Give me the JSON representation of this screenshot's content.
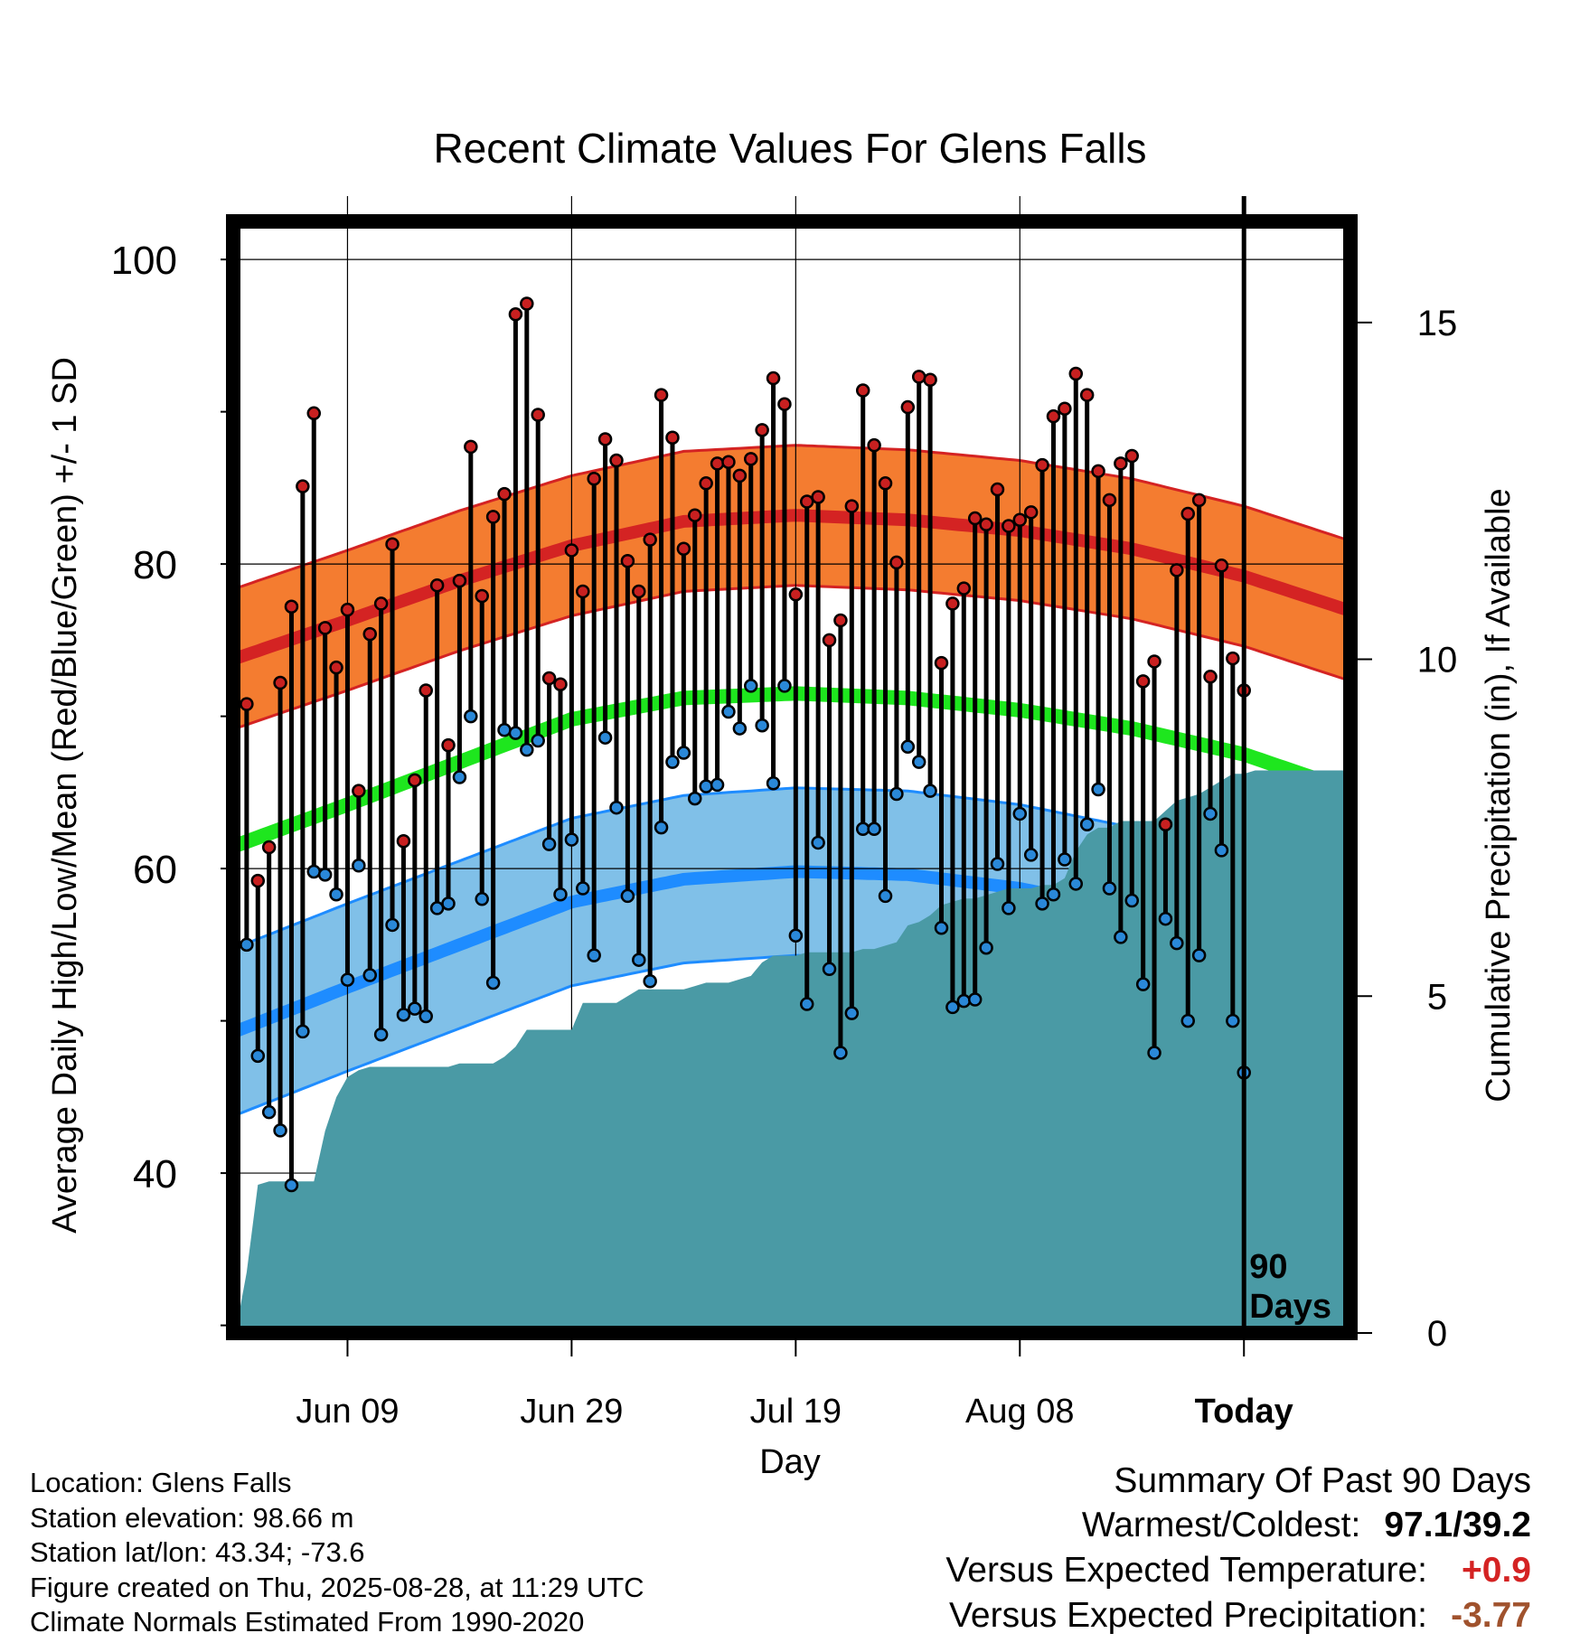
{
  "chart_data": {
    "type": "line",
    "title": "Recent Climate Values For Glens Falls",
    "xlabel": "Day",
    "ylabel": "Average Daily High/Low/Mean (Red/Blue/Green) +/- 1 SD",
    "y2label": "Cumulative Precipitation (in), If Available",
    "ylim": [
      29.5,
      102.5
    ],
    "y2lim": [
      0,
      16.5
    ],
    "y_ticks": [
      100,
      80,
      60,
      40
    ],
    "y2_ticks": [
      15,
      10,
      5,
      0
    ],
    "x_tick_labels": [
      "Jun 09",
      "Jun 29",
      "Jul 19",
      "Aug 08",
      "Today"
    ],
    "x_tick_days": [
      11,
      31,
      51,
      71,
      91
    ],
    "x_range": [
      0.8,
      100.5
    ],
    "days_marker_label": "90\nDays",
    "normal_high_day_points": [
      [
        1,
        73.8
      ],
      [
        11,
        76.3
      ],
      [
        21,
        78.9
      ],
      [
        31,
        81.2
      ],
      [
        41,
        82.8
      ],
      [
        51,
        83.2
      ],
      [
        61,
        82.9
      ],
      [
        71,
        82.2
      ],
      [
        81,
        81.0
      ],
      [
        91,
        79.2
      ],
      [
        101,
        76.8
      ]
    ],
    "normal_high_sd": 4.6,
    "normal_mean_day_points": [
      [
        1,
        61.5
      ],
      [
        11,
        64.2
      ],
      [
        21,
        67.0
      ],
      [
        31,
        69.8
      ],
      [
        41,
        71.2
      ],
      [
        51,
        71.5
      ],
      [
        61,
        71.2
      ],
      [
        71,
        70.4
      ],
      [
        81,
        69.2
      ],
      [
        91,
        67.5
      ],
      [
        101,
        65.0
      ]
    ],
    "normal_mean_halfwidth": 0.8,
    "normal_low_day_points": [
      [
        1,
        49.3
      ],
      [
        11,
        52.2
      ],
      [
        21,
        55.0
      ],
      [
        31,
        57.8
      ],
      [
        41,
        59.3
      ],
      [
        51,
        59.8
      ],
      [
        61,
        59.6
      ],
      [
        71,
        58.7
      ],
      [
        81,
        57.2
      ],
      [
        91,
        55.3
      ],
      [
        101,
        52.8
      ]
    ],
    "normal_low_sd": 5.5,
    "series": [
      {
        "name": "High",
        "values": [
          [
            2,
            70.8
          ],
          [
            3,
            59.2
          ],
          [
            4,
            61.4
          ],
          [
            5,
            72.2
          ],
          [
            6,
            77.2
          ],
          [
            7,
            85.1
          ],
          [
            8,
            89.9
          ],
          [
            9,
            75.8
          ],
          [
            10,
            73.2
          ],
          [
            11,
            77.0
          ],
          [
            12,
            65.1
          ],
          [
            13,
            75.4
          ],
          [
            14,
            77.4
          ],
          [
            15,
            81.3
          ],
          [
            16,
            61.8
          ],
          [
            17,
            65.8
          ],
          [
            18,
            71.7
          ],
          [
            19,
            78.6
          ],
          [
            20,
            68.1
          ],
          [
            21,
            78.9
          ],
          [
            22,
            87.7
          ],
          [
            23,
            77.9
          ],
          [
            24,
            83.1
          ],
          [
            25,
            84.6
          ],
          [
            26,
            96.4
          ],
          [
            27,
            97.1
          ],
          [
            28,
            89.8
          ],
          [
            29,
            72.5
          ],
          [
            30,
            72.1
          ],
          [
            31,
            80.9
          ],
          [
            32,
            78.2
          ],
          [
            33,
            85.6
          ],
          [
            34,
            88.2
          ],
          [
            35,
            86.8
          ],
          [
            36,
            80.2
          ],
          [
            37,
            78.2
          ],
          [
            38,
            81.6
          ],
          [
            39,
            91.1
          ],
          [
            40,
            88.3
          ],
          [
            41,
            81.0
          ],
          [
            42,
            83.2
          ],
          [
            43,
            85.3
          ],
          [
            44,
            86.6
          ],
          [
            45,
            86.7
          ],
          [
            46,
            85.8
          ],
          [
            47,
            86.9
          ],
          [
            48,
            88.8
          ],
          [
            49,
            92.2
          ],
          [
            50,
            90.5
          ],
          [
            51,
            78.0
          ],
          [
            52,
            84.1
          ],
          [
            53,
            84.4
          ],
          [
            54,
            75.0
          ],
          [
            55,
            76.3
          ],
          [
            56,
            83.8
          ],
          [
            57,
            91.4
          ],
          [
            58,
            87.8
          ],
          [
            59,
            85.3
          ],
          [
            60,
            80.1
          ],
          [
            61,
            90.3
          ],
          [
            62,
            92.3
          ],
          [
            63,
            92.1
          ],
          [
            64,
            73.5
          ],
          [
            65,
            77.4
          ],
          [
            66,
            78.4
          ],
          [
            67,
            83.0
          ],
          [
            68,
            82.6
          ],
          [
            69,
            84.9
          ],
          [
            70,
            82.5
          ],
          [
            71,
            82.9
          ],
          [
            72,
            83.4
          ],
          [
            73,
            86.5
          ],
          [
            74,
            89.7
          ],
          [
            75,
            90.2
          ],
          [
            76,
            92.5
          ],
          [
            77,
            91.1
          ],
          [
            78,
            86.1
          ],
          [
            79,
            84.2
          ],
          [
            80,
            86.6
          ],
          [
            81,
            87.1
          ],
          [
            82,
            72.3
          ],
          [
            83,
            73.6
          ],
          [
            84,
            62.9
          ],
          [
            85,
            79.6
          ],
          [
            86,
            83.3
          ],
          [
            87,
            84.2
          ],
          [
            88,
            72.6
          ],
          [
            89,
            79.9
          ],
          [
            90,
            73.8
          ],
          [
            91,
            71.7
          ]
        ]
      },
      {
        "name": "Low",
        "values": [
          [
            2,
            55.0
          ],
          [
            3,
            47.7
          ],
          [
            4,
            44.0
          ],
          [
            5,
            42.8
          ],
          [
            6,
            39.2
          ],
          [
            7,
            49.3
          ],
          [
            8,
            59.8
          ],
          [
            9,
            59.6
          ],
          [
            10,
            58.3
          ],
          [
            11,
            52.7
          ],
          [
            12,
            60.2
          ],
          [
            13,
            53.0
          ],
          [
            14,
            49.1
          ],
          [
            15,
            56.3
          ],
          [
            16,
            50.4
          ],
          [
            17,
            50.8
          ],
          [
            18,
            50.3
          ],
          [
            19,
            57.4
          ],
          [
            20,
            57.7
          ],
          [
            21,
            66.0
          ],
          [
            22,
            70.0
          ],
          [
            23,
            58.0
          ],
          [
            24,
            52.5
          ],
          [
            25,
            69.1
          ],
          [
            26,
            68.9
          ],
          [
            27,
            67.8
          ],
          [
            28,
            68.4
          ],
          [
            29,
            61.6
          ],
          [
            30,
            58.3
          ],
          [
            31,
            61.9
          ],
          [
            32,
            58.7
          ],
          [
            33,
            54.3
          ],
          [
            34,
            68.6
          ],
          [
            35,
            64.0
          ],
          [
            36,
            58.2
          ],
          [
            37,
            54.0
          ],
          [
            38,
            52.6
          ],
          [
            39,
            62.7
          ],
          [
            40,
            67.0
          ],
          [
            41,
            67.6
          ],
          [
            42,
            64.6
          ],
          [
            43,
            65.4
          ],
          [
            44,
            65.5
          ],
          [
            45,
            70.3
          ],
          [
            46,
            69.2
          ],
          [
            47,
            72.0
          ],
          [
            48,
            69.4
          ],
          [
            49,
            65.6
          ],
          [
            50,
            72.0
          ],
          [
            51,
            55.6
          ],
          [
            52,
            51.1
          ],
          [
            53,
            61.7
          ],
          [
            54,
            53.4
          ],
          [
            55,
            47.9
          ],
          [
            56,
            50.5
          ],
          [
            57,
            62.6
          ],
          [
            58,
            62.6
          ],
          [
            59,
            58.2
          ],
          [
            60,
            64.9
          ],
          [
            61,
            68.0
          ],
          [
            62,
            67.0
          ],
          [
            63,
            65.1
          ],
          [
            64,
            56.1
          ],
          [
            65,
            50.9
          ],
          [
            66,
            51.3
          ],
          [
            67,
            51.4
          ],
          [
            68,
            54.8
          ],
          [
            69,
            60.3
          ],
          [
            70,
            57.4
          ],
          [
            71,
            63.6
          ],
          [
            72,
            60.9
          ],
          [
            73,
            57.7
          ],
          [
            74,
            58.3
          ],
          [
            75,
            60.6
          ],
          [
            76,
            59.0
          ],
          [
            77,
            62.9
          ],
          [
            78,
            65.2
          ],
          [
            79,
            58.7
          ],
          [
            80,
            55.5
          ],
          [
            81,
            57.9
          ],
          [
            82,
            52.4
          ],
          [
            83,
            47.9
          ],
          [
            84,
            56.7
          ],
          [
            85,
            55.1
          ],
          [
            86,
            50.0
          ],
          [
            87,
            54.3
          ],
          [
            88,
            63.6
          ],
          [
            89,
            61.2
          ],
          [
            90,
            50.0
          ],
          [
            91,
            46.6
          ]
        ]
      },
      {
        "name": "Cumulative Precipitation",
        "values": [
          [
            1,
            0
          ],
          [
            2,
            0.9
          ],
          [
            3,
            2.2
          ],
          [
            4,
            2.25
          ],
          [
            5,
            2.25
          ],
          [
            6,
            2.25
          ],
          [
            7,
            2.25
          ],
          [
            8,
            2.25
          ],
          [
            9,
            3.0
          ],
          [
            10,
            3.5
          ],
          [
            11,
            3.8
          ],
          [
            12,
            3.9
          ],
          [
            13,
            3.95
          ],
          [
            14,
            3.95
          ],
          [
            15,
            3.95
          ],
          [
            16,
            3.95
          ],
          [
            17,
            3.95
          ],
          [
            18,
            3.95
          ],
          [
            19,
            3.95
          ],
          [
            20,
            3.95
          ],
          [
            21,
            4.0
          ],
          [
            22,
            4.0
          ],
          [
            23,
            4.0
          ],
          [
            24,
            4.0
          ],
          [
            25,
            4.1
          ],
          [
            26,
            4.25
          ],
          [
            27,
            4.5
          ],
          [
            28,
            4.5
          ],
          [
            29,
            4.5
          ],
          [
            30,
            4.5
          ],
          [
            31,
            4.5
          ],
          [
            32,
            4.9
          ],
          [
            33,
            4.9
          ],
          [
            34,
            4.9
          ],
          [
            35,
            4.9
          ],
          [
            36,
            5.0
          ],
          [
            37,
            5.1
          ],
          [
            38,
            5.1
          ],
          [
            39,
            5.1
          ],
          [
            40,
            5.1
          ],
          [
            41,
            5.1
          ],
          [
            42,
            5.15
          ],
          [
            43,
            5.2
          ],
          [
            44,
            5.2
          ],
          [
            45,
            5.2
          ],
          [
            46,
            5.25
          ],
          [
            47,
            5.3
          ],
          [
            48,
            5.5
          ],
          [
            49,
            5.6
          ],
          [
            50,
            5.6
          ],
          [
            51,
            5.6
          ],
          [
            52,
            5.65
          ],
          [
            53,
            5.65
          ],
          [
            54,
            5.65
          ],
          [
            55,
            5.65
          ],
          [
            56,
            5.65
          ],
          [
            57,
            5.7
          ],
          [
            58,
            5.7
          ],
          [
            59,
            5.75
          ],
          [
            60,
            5.8
          ],
          [
            61,
            6.05
          ],
          [
            62,
            6.1
          ],
          [
            63,
            6.2
          ],
          [
            64,
            6.35
          ],
          [
            65,
            6.4
          ],
          [
            66,
            6.45
          ],
          [
            67,
            6.45
          ],
          [
            68,
            6.5
          ],
          [
            69,
            6.55
          ],
          [
            70,
            6.6
          ],
          [
            71,
            6.6
          ],
          [
            72,
            6.6
          ],
          [
            73,
            6.65
          ],
          [
            74,
            6.65
          ],
          [
            75,
            6.75
          ],
          [
            76,
            7.15
          ],
          [
            77,
            7.4
          ],
          [
            78,
            7.5
          ],
          [
            79,
            7.5
          ],
          [
            80,
            7.6
          ],
          [
            81,
            7.6
          ],
          [
            82,
            7.6
          ],
          [
            83,
            7.6
          ],
          [
            84,
            7.75
          ],
          [
            85,
            7.9
          ],
          [
            86,
            7.95
          ],
          [
            87,
            8.0
          ],
          [
            88,
            8.1
          ],
          [
            89,
            8.2
          ],
          [
            90,
            8.3
          ],
          [
            91,
            8.3
          ],
          [
            92,
            8.35
          ],
          [
            93,
            8.35
          ],
          [
            94,
            8.35
          ],
          [
            95,
            8.35
          ],
          [
            96,
            8.35
          ],
          [
            97,
            8.35
          ],
          [
            98,
            8.35
          ],
          [
            99,
            8.35
          ],
          [
            100,
            8.35
          ]
        ]
      }
    ],
    "colors": {
      "high_band": "#f47c30",
      "high_line": "#d42323",
      "mean_line": "#1ee61e",
      "low_band": "#80c0e8",
      "low_line": "#1e8cff",
      "precip_fill": "#4a9aa5",
      "high_marker": "#c82020",
      "low_marker": "#2a88d8"
    }
  },
  "info": {
    "location": "Location: Glens Falls",
    "elevation": "Station elevation: 98.66 m",
    "latlon": "Station lat/lon: 43.34; -73.6",
    "created": "Figure created on Thu, 2025-08-28, at 11:29 UTC",
    "normals": "Climate Normals Estimated From 1990-2020"
  },
  "summary": {
    "heading": "Summary Of Past 90 Days",
    "warmest_label": "Warmest/Coldest:",
    "warmest_value": "97.1/39.2",
    "temp_label": "Versus Expected Temperature:",
    "temp_value": "+0.9",
    "temp_color": "#d42323",
    "precip_label": "Versus Expected Precipitation:",
    "precip_value": "-3.77",
    "precip_color": "#a0522d"
  }
}
